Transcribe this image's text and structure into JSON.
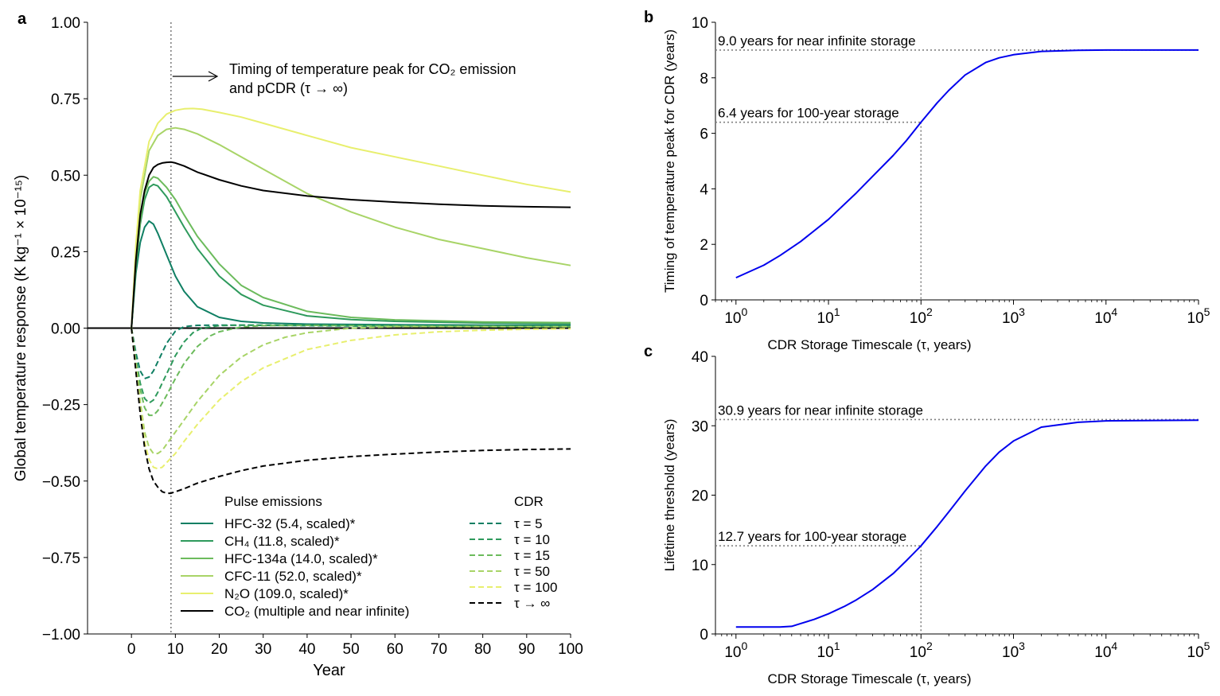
{
  "colors": {
    "hfc32": "#0f7f63",
    "ch4": "#2e9a5c",
    "hfc134a": "#6cbb5c",
    "cfc11": "#a8d467",
    "n2o": "#e8ef6e",
    "co2": "#000000",
    "curve": "#0000ee",
    "guide": "#808080"
  },
  "panels": {
    "a": {
      "label": "a"
    },
    "b": {
      "label": "b"
    },
    "c": {
      "label": "c"
    }
  },
  "chart_data": [
    {
      "id": "a",
      "type": "line",
      "xlabel": "Year",
      "ylabel": "Global temperature response (K kg⁻¹ × 10⁻¹⁵)",
      "xlim": [
        -10,
        100
      ],
      "ylim": [
        -1.0,
        1.0
      ],
      "xticks": [
        0,
        10,
        20,
        30,
        40,
        50,
        60,
        70,
        80,
        90,
        100
      ],
      "yticks": [
        "1.00",
        "0.75",
        "0.50",
        "0.25",
        "0.00",
        "−0.25",
        "−0.50",
        "−0.75",
        "−1.00"
      ],
      "ytick_values": [
        1.0,
        0.75,
        0.5,
        0.25,
        0.0,
        -0.25,
        -0.5,
        -0.75,
        -1.0
      ],
      "peak_year_line": 9,
      "annotation": "Timing of temperature peak for CO₂ emission and pCDR (τ → ∞)",
      "annotation_lines": [
        "Timing of temperature peak for CO₂ emission",
        "and pCDR (τ → ∞)"
      ],
      "legend_titles": [
        "Pulse emissions",
        "CDR"
      ],
      "pulse_series": [
        {
          "name": "HFC-32 (5.4, scaled)*",
          "color_key": "hfc32",
          "x": [
            0,
            1,
            2,
            3,
            4,
            5,
            6,
            8,
            10,
            12,
            15,
            20,
            25,
            30,
            40,
            50,
            60,
            80,
            100
          ],
          "y": [
            0,
            0.18,
            0.28,
            0.33,
            0.35,
            0.34,
            0.31,
            0.24,
            0.17,
            0.12,
            0.07,
            0.035,
            0.022,
            0.017,
            0.013,
            0.012,
            0.011,
            0.01,
            0.01
          ]
        },
        {
          "name": "CH₄ (11.8, scaled)*",
          "color_key": "ch4",
          "x": [
            0,
            1,
            2,
            3,
            4,
            5,
            6,
            8,
            10,
            12,
            15,
            20,
            25,
            30,
            40,
            50,
            60,
            80,
            100
          ],
          "y": [
            0,
            0.2,
            0.34,
            0.42,
            0.46,
            0.47,
            0.465,
            0.43,
            0.38,
            0.33,
            0.26,
            0.17,
            0.11,
            0.075,
            0.04,
            0.028,
            0.022,
            0.017,
            0.015
          ]
        },
        {
          "name": "HFC-134a (14.0, scaled)*",
          "color_key": "hfc134a",
          "x": [
            0,
            1,
            2,
            3,
            4,
            5,
            6,
            8,
            10,
            12,
            15,
            20,
            25,
            30,
            40,
            50,
            60,
            80,
            100
          ],
          "y": [
            0,
            0.21,
            0.35,
            0.44,
            0.48,
            0.495,
            0.49,
            0.46,
            0.42,
            0.37,
            0.3,
            0.21,
            0.14,
            0.1,
            0.055,
            0.035,
            0.027,
            0.02,
            0.018
          ]
        },
        {
          "name": "CFC-11 (52.0, scaled)*",
          "color_key": "cfc11",
          "x": [
            0,
            1,
            2,
            4,
            6,
            8,
            10,
            12,
            15,
            20,
            25,
            30,
            40,
            50,
            60,
            70,
            80,
            90,
            100
          ],
          "y": [
            0,
            0.25,
            0.42,
            0.58,
            0.63,
            0.65,
            0.655,
            0.65,
            0.635,
            0.6,
            0.56,
            0.52,
            0.44,
            0.38,
            0.33,
            0.29,
            0.26,
            0.23,
            0.205
          ]
        },
        {
          "name": "N₂O (109.0, scaled)*",
          "color_key": "n2o",
          "x": [
            0,
            1,
            2,
            4,
            6,
            8,
            10,
            12,
            14,
            16,
            20,
            25,
            30,
            40,
            50,
            60,
            70,
            80,
            90,
            100
          ],
          "y": [
            0,
            0.27,
            0.45,
            0.61,
            0.67,
            0.7,
            0.712,
            0.717,
            0.718,
            0.716,
            0.705,
            0.69,
            0.67,
            0.63,
            0.59,
            0.56,
            0.53,
            0.5,
            0.47,
            0.445
          ]
        },
        {
          "name": "CO₂ (multiple and near infinite)",
          "color_key": "co2",
          "x": [
            0,
            1,
            2,
            3,
            4,
            5,
            6,
            7,
            8,
            9,
            10,
            12,
            15,
            20,
            25,
            30,
            40,
            50,
            60,
            70,
            80,
            90,
            100
          ],
          "y": [
            0,
            0.22,
            0.37,
            0.45,
            0.5,
            0.525,
            0.535,
            0.54,
            0.542,
            0.543,
            0.54,
            0.53,
            0.51,
            0.485,
            0.465,
            0.45,
            0.432,
            0.42,
            0.412,
            0.405,
            0.4,
            0.397,
            0.395
          ]
        }
      ],
      "cdr_series": [
        {
          "name": "τ = 5",
          "color_key": "hfc32",
          "x": [
            0,
            1,
            2,
            3,
            4,
            5,
            6,
            7,
            8,
            10,
            12,
            15,
            20,
            25,
            30,
            40,
            50,
            60,
            70,
            80,
            90,
            100
          ],
          "y": [
            0,
            -0.08,
            -0.14,
            -0.165,
            -0.16,
            -0.14,
            -0.11,
            -0.08,
            -0.05,
            -0.01,
            0.005,
            0.009,
            0.01,
            0.01,
            0.009,
            0.008,
            0.007,
            0.006,
            0.006,
            0.005,
            0.005,
            0.005
          ]
        },
        {
          "name": "τ = 10",
          "color_key": "ch4",
          "x": [
            0,
            1,
            2,
            3,
            4,
            5,
            6,
            7,
            8,
            10,
            12,
            14,
            16,
            20,
            25,
            30,
            40,
            50,
            60,
            70,
            80,
            90,
            100
          ],
          "y": [
            0,
            -0.1,
            -0.18,
            -0.23,
            -0.245,
            -0.235,
            -0.21,
            -0.18,
            -0.15,
            -0.09,
            -0.045,
            -0.015,
            0.0,
            0.008,
            0.01,
            0.01,
            0.009,
            0.008,
            0.007,
            0.006,
            0.006,
            0.005,
            0.005
          ]
        },
        {
          "name": "τ = 15",
          "color_key": "hfc134a",
          "x": [
            0,
            1,
            2,
            3,
            4,
            5,
            6,
            7,
            8,
            10,
            12,
            15,
            18,
            20,
            25,
            30,
            40,
            50,
            60,
            70,
            80,
            90,
            100
          ],
          "y": [
            0,
            -0.11,
            -0.2,
            -0.26,
            -0.285,
            -0.285,
            -0.27,
            -0.245,
            -0.22,
            -0.165,
            -0.115,
            -0.06,
            -0.025,
            -0.012,
            0.004,
            0.008,
            0.009,
            0.008,
            0.007,
            0.006,
            0.006,
            0.005,
            0.005
          ]
        },
        {
          "name": "τ = 50",
          "color_key": "cfc11",
          "x": [
            0,
            1,
            2,
            3,
            4,
            5,
            6,
            7,
            8,
            10,
            12,
            15,
            20,
            25,
            30,
            35,
            40,
            50,
            60,
            70,
            80,
            90,
            100
          ],
          "y": [
            0,
            -0.12,
            -0.24,
            -0.34,
            -0.39,
            -0.41,
            -0.41,
            -0.4,
            -0.38,
            -0.34,
            -0.3,
            -0.24,
            -0.155,
            -0.095,
            -0.055,
            -0.03,
            -0.015,
            0.0,
            0.005,
            0.005,
            0.005,
            0.005,
            0.005
          ]
        },
        {
          "name": "τ = 100",
          "color_key": "n2o",
          "x": [
            0,
            1,
            2,
            3,
            4,
            5,
            6,
            7,
            8,
            10,
            12,
            15,
            20,
            25,
            30,
            40,
            50,
            60,
            70,
            80,
            90,
            100
          ],
          "y": [
            0,
            -0.13,
            -0.26,
            -0.37,
            -0.43,
            -0.455,
            -0.46,
            -0.455,
            -0.44,
            -0.41,
            -0.37,
            -0.315,
            -0.235,
            -0.175,
            -0.13,
            -0.07,
            -0.04,
            -0.022,
            -0.012,
            -0.007,
            -0.004,
            -0.002
          ]
        },
        {
          "name": "τ → ∞",
          "color_key": "co2",
          "x": [
            0,
            1,
            2,
            3,
            4,
            5,
            6,
            7,
            8,
            9,
            10,
            12,
            15,
            20,
            25,
            30,
            40,
            50,
            60,
            70,
            80,
            90,
            100
          ],
          "y": [
            0,
            -0.14,
            -0.28,
            -0.39,
            -0.46,
            -0.5,
            -0.52,
            -0.535,
            -0.54,
            -0.54,
            -0.535,
            -0.525,
            -0.507,
            -0.485,
            -0.466,
            -0.451,
            -0.432,
            -0.42,
            -0.412,
            -0.405,
            -0.4,
            -0.397,
            -0.395
          ]
        }
      ]
    },
    {
      "id": "b",
      "type": "line",
      "xscale": "log",
      "xlabel": "CDR Storage Timescale (τ, years)",
      "ylabel": "Timing of temperature peak for CDR (years)",
      "xlim": [
        0.6,
        100000
      ],
      "ylim": [
        0,
        10
      ],
      "yticks": [
        0,
        2,
        4,
        6,
        8,
        10
      ],
      "xtick_exponents": [
        "0",
        "1",
        "2",
        "3",
        "4",
        "5"
      ],
      "x_marker": 100,
      "annotations": [
        {
          "text": "9.0 years for near infinite storage",
          "y": 9.0
        },
        {
          "text": "6.4 years for 100-year storage",
          "y": 6.4
        }
      ],
      "series": [
        {
          "x": [
            1,
            2,
            3,
            5,
            10,
            20,
            30,
            50,
            70,
            100,
            150,
            200,
            300,
            500,
            700,
            1000,
            2000,
            5000,
            10000,
            100000
          ],
          "y": [
            0.8,
            1.25,
            1.6,
            2.1,
            2.9,
            3.85,
            4.45,
            5.2,
            5.75,
            6.4,
            7.1,
            7.55,
            8.1,
            8.55,
            8.72,
            8.83,
            8.95,
            8.99,
            9.0,
            9.0
          ]
        }
      ]
    },
    {
      "id": "c",
      "type": "line",
      "xscale": "log",
      "xlabel": "CDR Storage Timescale (τ, years)",
      "ylabel": "Lifetime threshold (years)",
      "xlim": [
        0.6,
        100000
      ],
      "ylim": [
        0,
        40
      ],
      "yticks": [
        0,
        10,
        20,
        30,
        40
      ],
      "xtick_exponents": [
        "0",
        "1",
        "2",
        "3",
        "4",
        "5"
      ],
      "x_marker": 100,
      "annotations": [
        {
          "text": "30.9 years for near infinite storage",
          "y": 30.9
        },
        {
          "text": "12.7 years for 100-year storage",
          "y": 12.7
        }
      ],
      "series": [
        {
          "x": [
            1,
            2,
            3,
            4,
            5,
            7,
            10,
            15,
            20,
            30,
            50,
            70,
            100,
            150,
            200,
            300,
            500,
            700,
            1000,
            2000,
            5000,
            10000,
            100000
          ],
          "y": [
            1.0,
            1.0,
            1.0,
            1.1,
            1.5,
            2.1,
            2.9,
            4.0,
            4.9,
            6.4,
            8.7,
            10.6,
            12.7,
            15.5,
            17.6,
            20.6,
            24.2,
            26.2,
            27.8,
            29.8,
            30.5,
            30.7,
            30.8
          ]
        }
      ]
    }
  ]
}
